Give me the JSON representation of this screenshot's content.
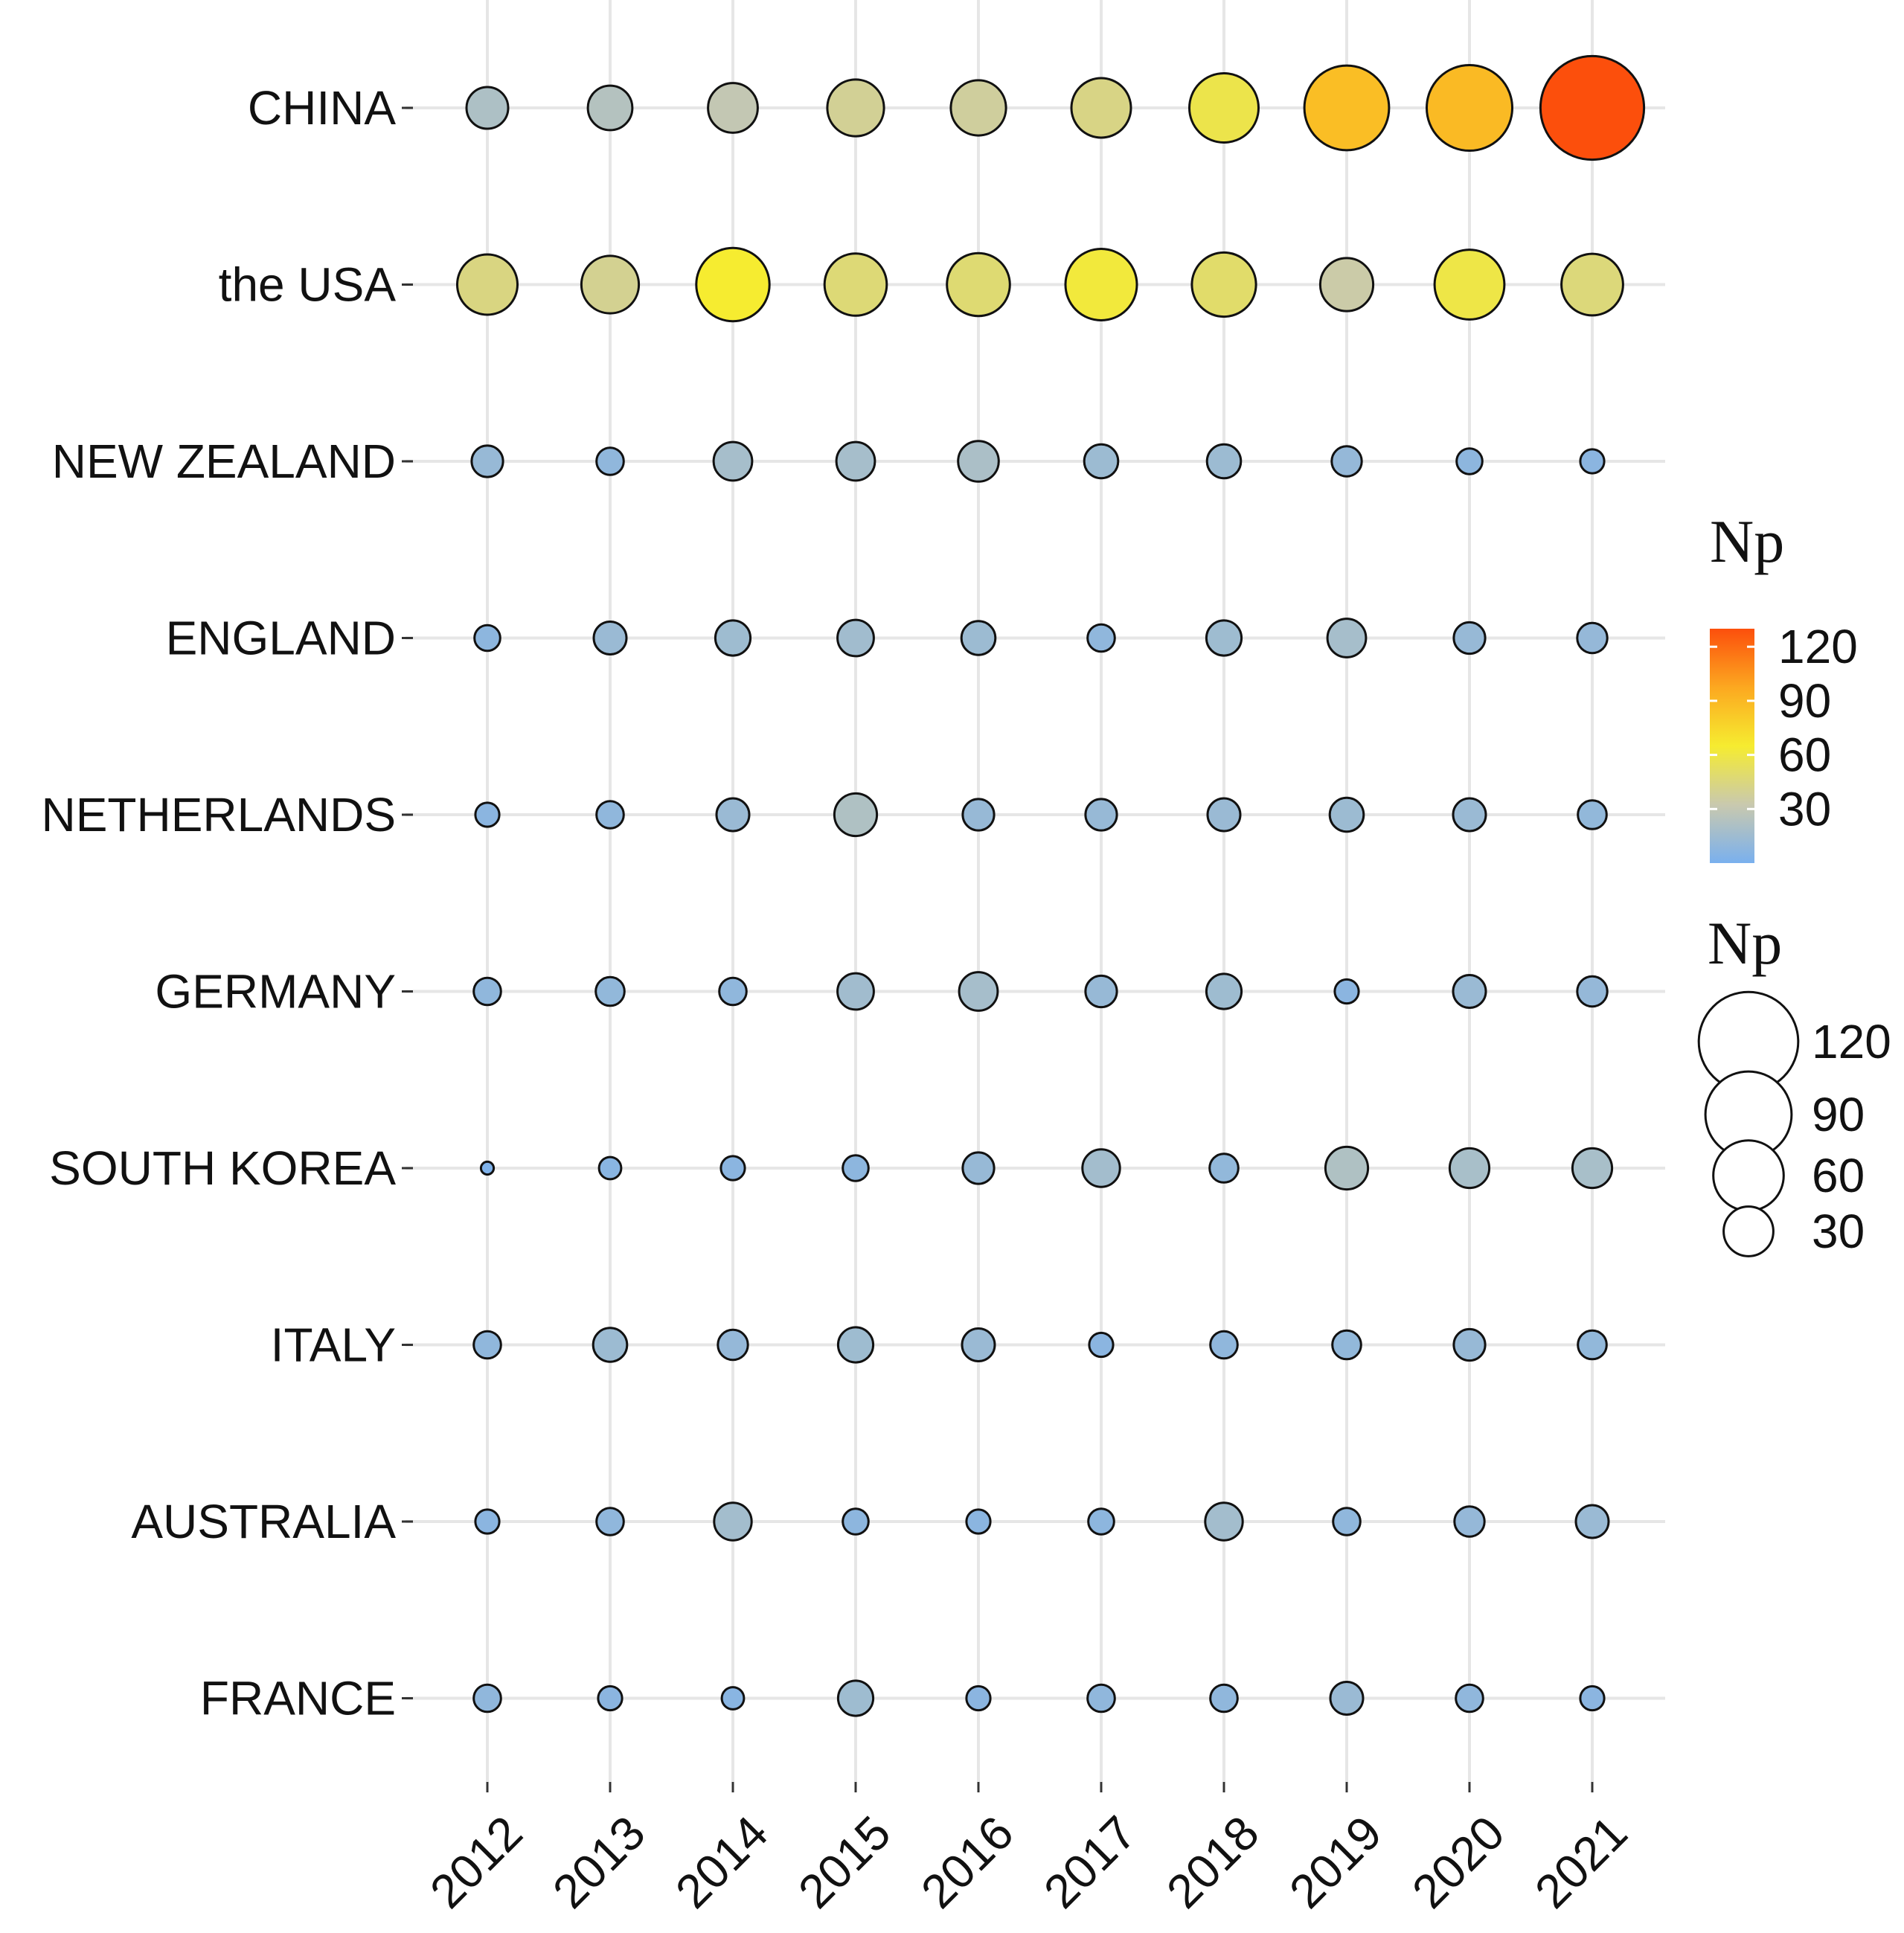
{
  "chart_data": {
    "type": "scatter",
    "subtype": "bubble",
    "title": "",
    "xlabel": "",
    "ylabel": "",
    "x": [
      "2012",
      "2013",
      "2014",
      "2015",
      "2016",
      "2017",
      "2018",
      "2019",
      "2020",
      "2021"
    ],
    "y": [
      "CHINA",
      "the USA",
      "NEW ZEALAND",
      "ENGLAND",
      "NETHERLANDS",
      "GERMANY",
      "SOUTH KOREA",
      "ITALY",
      "AUSTRALIA",
      "FRANCE"
    ],
    "series": [
      {
        "country": "CHINA",
        "values": [
          21,
          24,
          30,
          39,
          37,
          43,
          58,
          87,
          89,
          130
        ]
      },
      {
        "country": "the USA",
        "values": [
          44,
          40,
          65,
          47,
          48,
          62,
          50,
          34,
          59,
          46
        ]
      },
      {
        "country": "NEW ZEALAND",
        "values": [
          12,
          9,
          18,
          18,
          20,
          14,
          14,
          11,
          8,
          7
        ]
      },
      {
        "country": "ENGLAND",
        "values": [
          8,
          13,
          15,
          16,
          14,
          9,
          15,
          18,
          12,
          11
        ]
      },
      {
        "country": "NETHERLANDS",
        "values": [
          7,
          9,
          13,
          22,
          12,
          12,
          13,
          14,
          13,
          10
        ]
      },
      {
        "country": "GERMANY",
        "values": [
          9,
          10,
          9,
          16,
          18,
          12,
          15,
          7,
          13,
          11
        ]
      },
      {
        "country": "SOUTH KOREA",
        "values": [
          2,
          6,
          7,
          8,
          12,
          17,
          10,
          22,
          19,
          19
        ]
      },
      {
        "country": "ITALY",
        "values": [
          9,
          14,
          11,
          15,
          13,
          7,
          9,
          10,
          12,
          10
        ]
      },
      {
        "country": "AUSTRALIA",
        "values": [
          7,
          9,
          17,
          8,
          7,
          8,
          17,
          9,
          11,
          13
        ]
      },
      {
        "country": "FRANCE",
        "values": [
          9,
          7,
          6,
          15,
          7,
          9,
          9,
          13,
          9,
          7
        ]
      }
    ],
    "legend": {
      "position": "right",
      "color_title": "Np",
      "color_ticks": [
        30,
        60,
        90,
        120
      ],
      "color_range": [
        0,
        130
      ],
      "colors": [
        "#7ab0ee",
        "#c9c9ae",
        "#f6ec30",
        "#fca820",
        "#fc4f0c"
      ],
      "size_title": "Np",
      "size_breaks": [
        120,
        90,
        60,
        30
      ]
    },
    "grid": true,
    "marker_outline_color": "#111111"
  }
}
